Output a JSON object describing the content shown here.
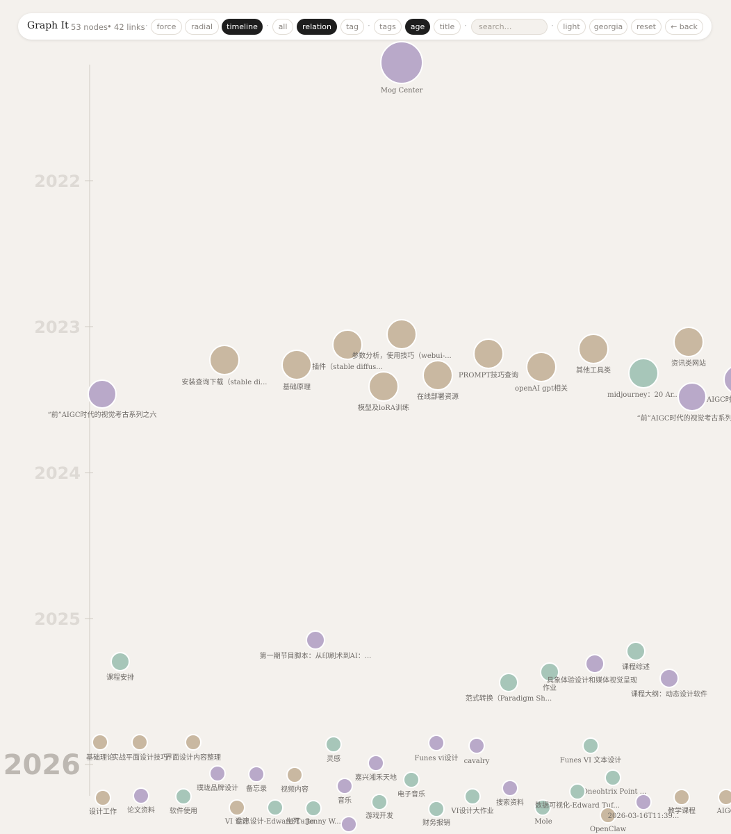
{
  "toolbar": {
    "title": "Graph It",
    "stats": {
      "nodes": "53 nodes",
      "links": "42 links",
      "dot": "•"
    },
    "separator": "·",
    "layout_buttons": [
      {
        "label": "force",
        "active": false
      },
      {
        "label": "radial",
        "active": false
      },
      {
        "label": "timeline",
        "active": true
      }
    ],
    "filter_buttons": [
      {
        "label": "all",
        "active": false
      },
      {
        "label": "relation",
        "active": true
      },
      {
        "label": "tag",
        "active": false
      }
    ],
    "color_buttons": [
      {
        "label": "tags",
        "active": false
      },
      {
        "label": "age",
        "active": true
      },
      {
        "label": "title",
        "active": false
      }
    ],
    "search_placeholder": "search…",
    "theme_buttons": [
      {
        "label": "light",
        "active": false
      },
      {
        "label": "georgia",
        "active": false
      },
      {
        "label": "reset",
        "active": false
      },
      {
        "label": "← back",
        "active": false
      }
    ]
  },
  "timeline": {
    "years": [
      {
        "label": "2022",
        "current": false
      },
      {
        "label": "2023",
        "current": false
      },
      {
        "label": "2024",
        "current": false
      },
      {
        "label": "2025",
        "current": false
      },
      {
        "label": "2026",
        "current": true
      }
    ]
  },
  "colors": {
    "purple": "#b9a9c9",
    "tan": "#c9b8a1",
    "green": "#a7c6b9",
    "axis": "#cfcac4",
    "node_stroke": "#ffffff"
  },
  "nodes": [
    {
      "label": "Mog Center",
      "group": "purple",
      "size": "xl"
    },
    {
      "label": "“前”AIGC时代的视觉考古系列之六",
      "group": "purple",
      "size": "m"
    },
    {
      "label": "安装查询下载（stable di...",
      "group": "tan",
      "size": "l"
    },
    {
      "label": "基础原理",
      "group": "tan",
      "size": "l"
    },
    {
      "label": "插件（stable diffus...",
      "group": "tan",
      "size": "l"
    },
    {
      "label": "参数分析，使用技巧（webui-...",
      "group": "tan",
      "size": "l"
    },
    {
      "label": "模型及loRA训练",
      "group": "tan",
      "size": "l"
    },
    {
      "label": "在线部署资源",
      "group": "tan",
      "size": "l"
    },
    {
      "label": "PROMPT技巧查询",
      "group": "tan",
      "size": "l"
    },
    {
      "label": "openAI gpt相关",
      "group": "tan",
      "size": "l"
    },
    {
      "label": "其他工具类",
      "group": "tan",
      "size": "l"
    },
    {
      "label": "midjourney：20 Ar...",
      "group": "green",
      "size": "l"
    },
    {
      "label": "资讯类网站",
      "group": "tan",
      "size": "l"
    },
    {
      "label": "“前”AIGC时代的视觉考古系列",
      "group": "purple",
      "size": "m"
    },
    {
      "label": "AIGC时代",
      "group": "purple",
      "size": "m"
    },
    {
      "label": "第一期节目脚本：从印刷术到AI：...",
      "group": "purple",
      "size": "s"
    },
    {
      "label": "课程安排",
      "group": "green",
      "size": "s"
    },
    {
      "label": "范式转换（Paradigm Sh...",
      "group": "green",
      "size": "s"
    },
    {
      "label": "作业",
      "group": "green",
      "size": "s"
    },
    {
      "label": "具象体验设计和媒体视觉呈现",
      "group": "purple",
      "size": "s"
    },
    {
      "label": "课程综述",
      "group": "green",
      "size": "s"
    },
    {
      "label": "课程大纲：动态设计软件",
      "group": "purple",
      "size": "s"
    },
    {
      "label": "基础理论",
      "group": "tan",
      "size": "xs"
    },
    {
      "label": "实战平面设计技巧",
      "group": "tan",
      "size": "xs"
    },
    {
      "label": "界面设计内容整理",
      "group": "tan",
      "size": "xs"
    },
    {
      "label": "灵感",
      "group": "green",
      "size": "xs"
    },
    {
      "label": "Funes vi设计",
      "group": "purple",
      "size": "xs"
    },
    {
      "label": "cavalry",
      "group": "purple",
      "size": "xs"
    },
    {
      "label": "Funes VI 文本设计",
      "group": "green",
      "size": "xs"
    },
    {
      "label": "璞珑品牌设计",
      "group": "purple",
      "size": "xs"
    },
    {
      "label": "备忘录",
      "group": "purple",
      "size": "xs"
    },
    {
      "label": "视频内容",
      "group": "tan",
      "size": "xs"
    },
    {
      "label": "嘉兴湘禾天地",
      "group": "purple",
      "size": "xs"
    },
    {
      "label": "电子音乐",
      "group": "green",
      "size": "xs"
    },
    {
      "label": "音乐",
      "group": "purple",
      "size": "xs"
    },
    {
      "label": "Oneohtrix Point ...",
      "group": "green",
      "size": "xs"
    },
    {
      "label": "设计工作",
      "group": "tan",
      "size": "xs"
    },
    {
      "label": "论文资料",
      "group": "purple",
      "size": "xs"
    },
    {
      "label": "软件使用",
      "group": "green",
      "size": "xs"
    },
    {
      "label": "VI 设计",
      "group": "tan",
      "size": "xs"
    },
    {
      "label": "信息设计-Edward Tufte",
      "group": "green",
      "size": "xs"
    },
    {
      "label": "生死 - Jenny W...",
      "group": "green",
      "size": "xs"
    },
    {
      "label": "游戏开发",
      "group": "green",
      "size": "xs"
    },
    {
      "label": "财务报销",
      "group": "green",
      "size": "xs"
    },
    {
      "label": "VI设计大作业",
      "group": "green",
      "size": "xs"
    },
    {
      "label": "搜索资料",
      "group": "purple",
      "size": "xs"
    },
    {
      "label": "Mole",
      "group": "green",
      "size": "xs"
    },
    {
      "label": "数据可视化-Edward Tuf...",
      "group": "green",
      "size": "xs"
    },
    {
      "label": "OpenClaw",
      "group": "tan",
      "size": "xs"
    },
    {
      "label": "2026-03-16T11:39...",
      "group": "purple",
      "size": "xs"
    },
    {
      "label": "教学课程",
      "group": "tan",
      "size": "xs"
    },
    {
      "label": "AIGC",
      "group": "tan",
      "size": "xs"
    },
    {
      "label": "",
      "group": "purple",
      "size": "xs"
    }
  ]
}
